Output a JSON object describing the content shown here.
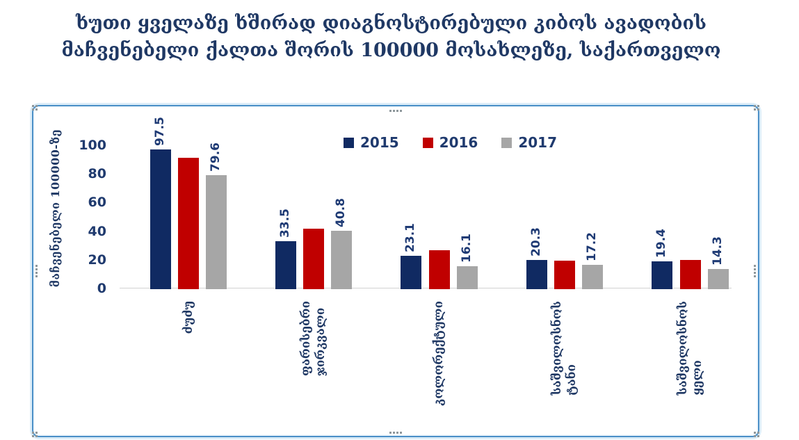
{
  "title_lines": [
    "ხუთი ყველაზე ხშირად დიაგნოსტირებული კიბოს ავადობის",
    "მაჩვენებელი ქალთა შორის 100000 მოსახლეზე, საქართველო"
  ],
  "colors": {
    "navy_bar": "#102a62",
    "red_bar": "#c00000",
    "gray_bar": "#a6a6a6",
    "text_navy": "#1f3864",
    "number_navy": "#1e3a74",
    "axis_line": "#d1d1d1",
    "frame_blue": "#4a8fc7",
    "frame_pale": "#dcedf8",
    "handle_gray": "#8f989c"
  },
  "chart_data": {
    "type": "bar",
    "title": "ხუთი ყველაზე ხშირად დიაგნოსტირებული კიბოს ავადობის მაჩვენებელი ქალთა შორის 100000 მოსახლეზე, საქართველო",
    "xlabel": "",
    "ylabel": "მაჩვენებელი 100000-ზე",
    "ylim": [
      0,
      100
    ],
    "yticks": [
      0,
      20,
      40,
      60,
      80,
      100
    ],
    "grid": false,
    "legend_position": "top-center",
    "categories": [
      "ძუძუ",
      "ფარისებრი ჯირკვალი",
      "კოლორექტული",
      "საშვილოსნოს ტანი",
      "საშვილოსნოს ყელი"
    ],
    "categories_display_lines": [
      [
        "ძუძუ"
      ],
      [
        "ფარისებრი",
        "ჯირკვალი"
      ],
      [
        "კოლორექტული"
      ],
      [
        "საშვილოსნოს",
        "ტანი"
      ],
      [
        "საშვილოსნოს",
        "ყელი"
      ]
    ],
    "series": [
      {
        "name": "2015",
        "color": "#102a62",
        "values": [
          97.5,
          33.5,
          23.1,
          20.3,
          19.4
        ],
        "labels_shown": true
      },
      {
        "name": "2016",
        "color": "#c00000",
        "values": [
          91.7,
          42.4,
          27.3,
          20.0,
          20.6
        ],
        "labels_shown": false,
        "values_estimated": true
      },
      {
        "name": "2017",
        "color": "#a6a6a6",
        "values": [
          79.6,
          40.8,
          16.1,
          17.2,
          14.3
        ],
        "labels_shown": true
      }
    ]
  }
}
